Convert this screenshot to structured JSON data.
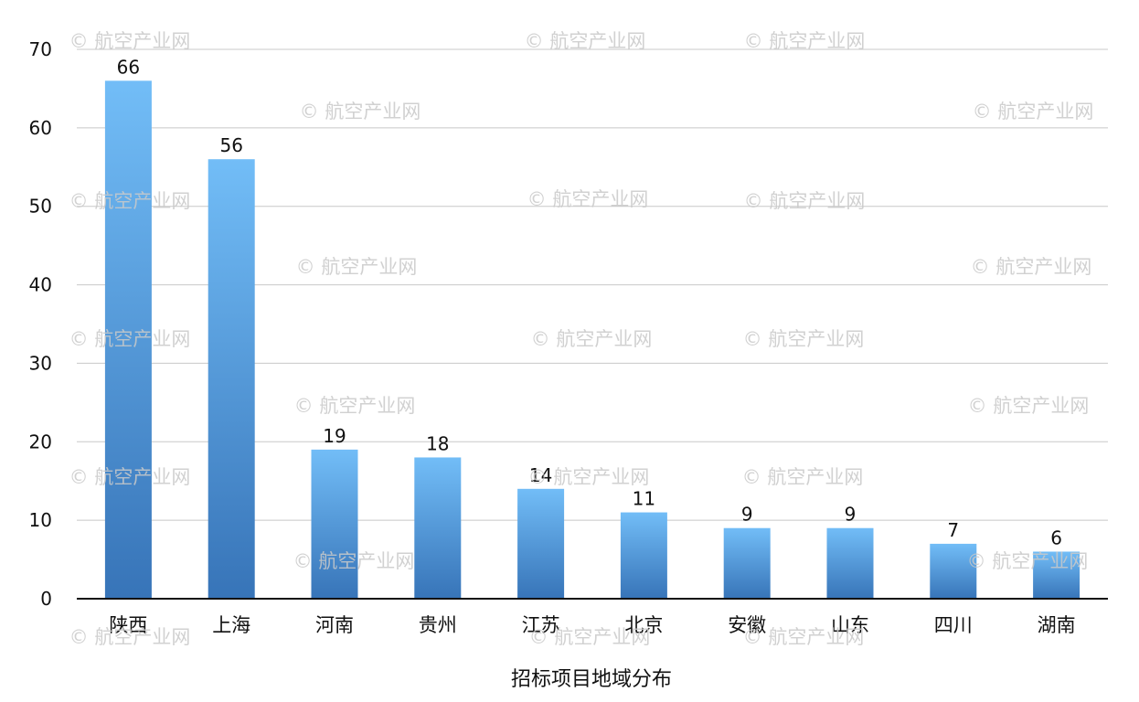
{
  "chart_data": {
    "type": "bar",
    "title": "",
    "xlabel": "招标项目地域分布",
    "ylabel": "",
    "categories": [
      "陕西",
      "上海",
      "河南",
      "贵州",
      "江苏",
      "北京",
      "安徽",
      "山东",
      "四川",
      "湖南"
    ],
    "values": [
      66,
      56,
      19,
      18,
      14,
      11,
      9,
      9,
      7,
      6
    ],
    "ylim": [
      0,
      70
    ],
    "yticks": [
      0,
      10,
      20,
      30,
      40,
      50,
      60,
      70
    ],
    "grid": true,
    "legend": "none",
    "bar_gradient": [
      "#72bdf7",
      "#3774b8"
    ],
    "gridline_color": "#c8c8c8",
    "axis_color": "#111111"
  },
  "watermark": {
    "text": "© 航空产业网"
  }
}
